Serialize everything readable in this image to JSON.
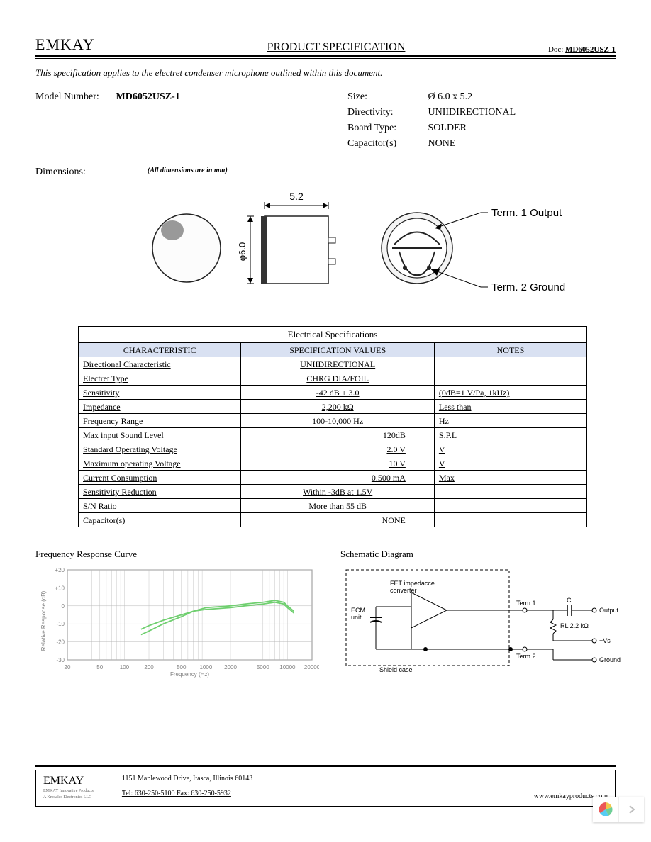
{
  "header": {
    "brand": "EMKAY",
    "title": "PRODUCT SPECIFICATION",
    "doc_label": "Doc:",
    "doc_value": "MD6052USZ-1"
  },
  "intro": "This specification applies to the electret condenser microphone outlined within this document.",
  "meta": {
    "model_label": "Model Number:",
    "model_value": "MD6052USZ-1",
    "size_label": "Size:",
    "size_value": "Ø  6.0  x 5.2",
    "directivity_label": "Directivity:",
    "directivity_value": "UNIIDIRECTIONAL",
    "board_label": "Board Type:",
    "board_value": "SOLDER",
    "cap_label": "Capacitor(s)",
    "cap_value": "NONE"
  },
  "dims": {
    "label": "Dimensions:",
    "note": "(All dimensions are in mm)",
    "width_dim": "5.2",
    "dia_dim": "φ6.0",
    "term1": "Term. 1 Output",
    "term2": "Term. 2 Ground"
  },
  "spec_table": {
    "title": "Electrical Specifications",
    "col1": "CHARACTERISTIC",
    "col2": "SPECIFICATION VALUES",
    "col3": "NOTES",
    "rows": [
      {
        "c": "Directional Characteristic",
        "v": "UNIIDIRECTIONAL",
        "n": ""
      },
      {
        "c": "Electret Type",
        "v": "CHRG DIA/FOIL",
        "n": ""
      },
      {
        "c": "Sensitivity",
        "v": "-42  dB    +   3.0",
        "n": "(0dB=1 V/Pa, 1kHz)"
      },
      {
        "c": "Impedance",
        "v": "2,200      kΩ",
        "n": "Less than"
      },
      {
        "c": "Frequency Range",
        "v": "100-10,000       Hz",
        "n": "Hz"
      },
      {
        "c": "Max input Sound Level",
        "v": "120dB",
        "n": "S.P.L"
      },
      {
        "c": "Standard Operating Voltage",
        "v": "2.0   V",
        "n": "V"
      },
      {
        "c": "Maximum operating Voltage",
        "v": "10   V",
        "n": "V"
      },
      {
        "c": "Current Consumption",
        "v": "0.500    mA",
        "n": "Max"
      },
      {
        "c": "Sensitivity Reduction",
        "v": "Within -3dB at 1.5V",
        "n": ""
      },
      {
        "c": "S/N Ratio",
        "v": "More than          55  dB",
        "n": ""
      },
      {
        "c": "Capacitor(s)",
        "v": "NONE",
        "n": ""
      }
    ]
  },
  "freq_chart": {
    "title": "Frequency Response Curve",
    "ylabel": "Relative Response (dB)",
    "xlabel": "Frequency (Hz)",
    "ylim": [
      -30,
      20
    ],
    "ytick_step": 10,
    "xticks": [
      20,
      50,
      100,
      200,
      500,
      1000,
      2000,
      5000,
      10000,
      20000
    ],
    "line_color": "#6fcf6f",
    "grid_color": "#b8b8b8",
    "axis_color": "#7a7a7a",
    "label_color": "#808080",
    "background_color": "#ffffff",
    "label_fontsize": 8,
    "curve1": [
      [
        160,
        -16
      ],
      [
        200,
        -14
      ],
      [
        300,
        -10
      ],
      [
        500,
        -6
      ],
      [
        700,
        -3
      ],
      [
        1000,
        -1
      ],
      [
        2000,
        0
      ],
      [
        3000,
        1
      ],
      [
        5000,
        2
      ],
      [
        7000,
        3
      ],
      [
        9000,
        2
      ],
      [
        10000,
        0
      ],
      [
        12000,
        -3
      ]
    ],
    "curve2": [
      [
        160,
        -13
      ],
      [
        200,
        -11
      ],
      [
        300,
        -8
      ],
      [
        500,
        -5
      ],
      [
        700,
        -3
      ],
      [
        1000,
        -2
      ],
      [
        2000,
        -1
      ],
      [
        3000,
        0
      ],
      [
        5000,
        1
      ],
      [
        7000,
        2
      ],
      [
        9000,
        1
      ],
      [
        10000,
        -1
      ],
      [
        12000,
        -4
      ]
    ]
  },
  "schematic": {
    "title": "Schematic Diagram",
    "fet_label": "FET impedacce\nconverter",
    "ecm_label": "ECM\nunit",
    "shield_label": "Shield case",
    "term1": "Term.1",
    "term2": "Term.2",
    "c_label": "C",
    "output": "Output",
    "rl": "RL  2.2 kΩ",
    "vs": "+Vs",
    "ground": "Ground",
    "line_color": "#000000",
    "text_fontsize": 9
  },
  "footer": {
    "brand": "EMKAY",
    "sub1": "EMKAY Innovative Products",
    "sub2": "A Knowles Electronics LLC",
    "addr": "1151 Maplewood Drive, Itasca, Illinois 60143",
    "phone": "Tel:  630-250-5100   Fax:   630-250-5932",
    "url": "www.emkayproducts.com"
  },
  "nav": {
    "forward_color": "#c0c0c0"
  }
}
